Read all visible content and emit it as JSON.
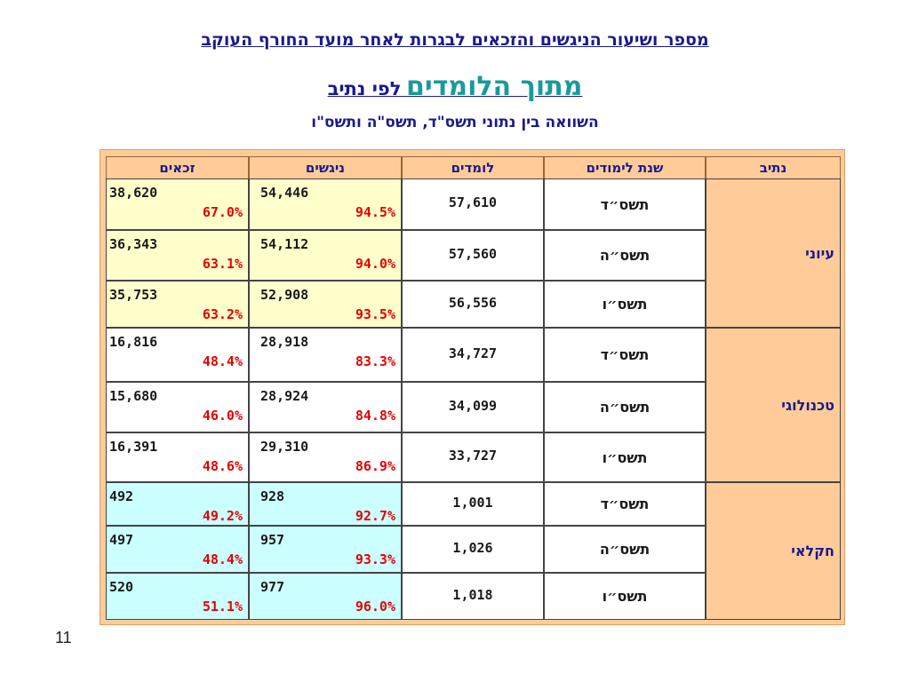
{
  "title": {
    "line1": "מספר ושיעור הניגשים והזכאים לבגרות לאחר מועד החורף העוקב",
    "line2_big": "מתוך הלומדים",
    "line2_small": "לפי נתיב",
    "line3": "השוואה בין נתוני תשס\"ד, תשס\"ה ותשס\"ו"
  },
  "table": {
    "headers": {
      "track": "נתיב",
      "year": "שנת לימודים",
      "learners": "לומדים",
      "takers": "ניגשים",
      "eligible": "זכאים"
    },
    "groups": [
      {
        "track": "עיוני",
        "color": "#ffffcc",
        "rows": [
          {
            "year": "תשס״ד",
            "learners": "57,610",
            "takers": "54,446",
            "takers_pct": "94.5%",
            "eligible": "38,620",
            "eligible_pct": "67.0%"
          },
          {
            "year": "תשס״ה",
            "learners": "57,560",
            "takers": "54,112",
            "takers_pct": "94.0%",
            "eligible": "36,343",
            "eligible_pct": "63.1%"
          },
          {
            "year": "תשס״ו",
            "learners": "56,556",
            "takers": "52,908",
            "takers_pct": "93.5%",
            "eligible": "35,753",
            "eligible_pct": "63.2%"
          }
        ]
      },
      {
        "track": "טכנולוגי",
        "color": "#ffffff",
        "rows": [
          {
            "year": "תשס״ד",
            "learners": "34,727",
            "takers": "28,918",
            "takers_pct": "83.3%",
            "eligible": "16,816",
            "eligible_pct": "48.4%"
          },
          {
            "year": "תשס״ה",
            "learners": "34,099",
            "takers": "28,924",
            "takers_pct": "84.8%",
            "eligible": "15,680",
            "eligible_pct": "46.0%"
          },
          {
            "year": "תשס״ו",
            "learners": "33,727",
            "takers": "29,310",
            "takers_pct": "86.9%",
            "eligible": "16,391",
            "eligible_pct": "48.6%"
          }
        ]
      },
      {
        "track": "חקלאי",
        "color": "#ccffff",
        "rows": [
          {
            "year": "תשס״ד",
            "learners": "1,001",
            "takers": "928",
            "takers_pct": "92.7%",
            "eligible": "492",
            "eligible_pct": "49.2%"
          },
          {
            "year": "תשס״ה",
            "learners": "1,026",
            "takers": "957",
            "takers_pct": "93.3%",
            "eligible": "497",
            "eligible_pct": "48.4%"
          },
          {
            "year": "תשס״ו",
            "learners": "1,018",
            "takers": "977",
            "takers_pct": "96.0%",
            "eligible": "520",
            "eligible_pct": "51.1%"
          }
        ]
      }
    ]
  },
  "page_number": "11"
}
